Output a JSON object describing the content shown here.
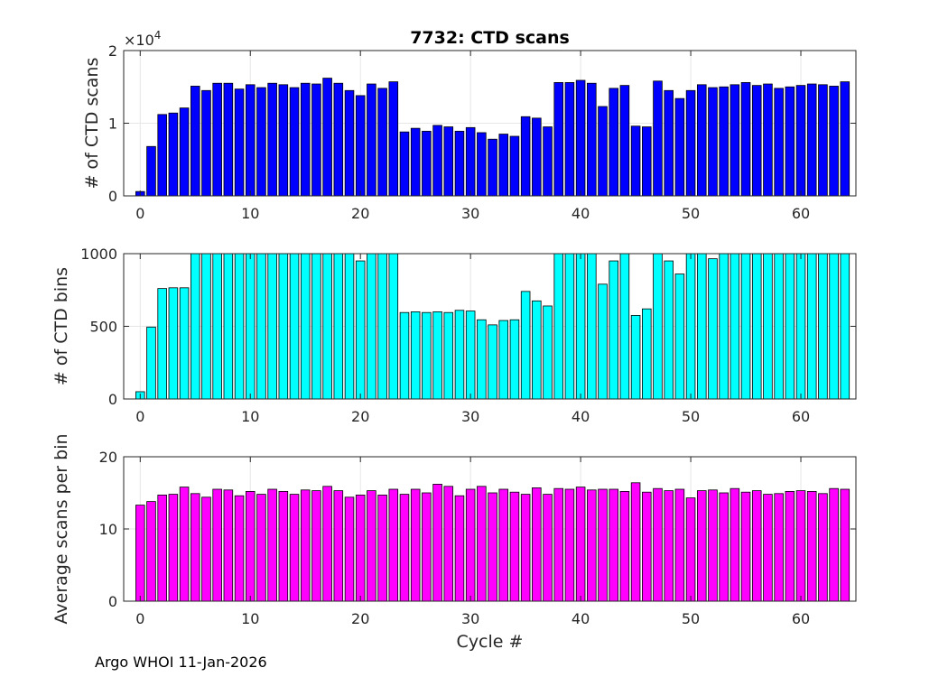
{
  "figure": {
    "footer": "Argo WHOI 11-Jan-2026"
  },
  "chart_data": [
    {
      "type": "bar",
      "title": "7732: CTD scans",
      "ylabel": "# of CTD scans",
      "xlabel": "",
      "exponent_label": "×10",
      "exponent_power": "4",
      "xlim": [
        -1.5,
        65
      ],
      "ylim": [
        0,
        20000
      ],
      "grid": true,
      "bar_color": "#0000ff",
      "xticks": [
        0,
        10,
        20,
        30,
        40,
        50,
        60
      ],
      "xtick_labels": [
        "0",
        "10",
        "20",
        "30",
        "40",
        "50",
        "60"
      ],
      "yticks": [
        0,
        10000,
        20000
      ],
      "ytick_labels": [
        "0",
        "1",
        "2"
      ],
      "x": [
        0,
        1,
        2,
        3,
        4,
        5,
        6,
        7,
        8,
        9,
        10,
        11,
        12,
        13,
        14,
        15,
        16,
        17,
        18,
        19,
        20,
        21,
        22,
        23,
        24,
        25,
        26,
        27,
        28,
        29,
        30,
        31,
        32,
        33,
        34,
        35,
        36,
        37,
        38,
        39,
        40,
        41,
        42,
        43,
        44,
        45,
        46,
        47,
        48,
        49,
        50,
        51,
        52,
        53,
        54,
        55,
        56,
        57,
        58,
        59,
        60,
        61,
        62,
        63,
        64
      ],
      "values": [
        600,
        6800,
        11200,
        11400,
        12100,
        15100,
        14500,
        15500,
        15500,
        14700,
        15300,
        14900,
        15500,
        15300,
        14900,
        15500,
        15400,
        16200,
        15500,
        14500,
        13800,
        15400,
        14800,
        15700,
        8800,
        9300,
        8900,
        9700,
        9500,
        8900,
        9400,
        8700,
        7800,
        8500,
        8200,
        10900,
        10700,
        9500,
        15600,
        15600,
        15900,
        15500,
        12300,
        14800,
        15200,
        9600,
        9500,
        15800,
        14500,
        13400,
        14500,
        15300,
        14900,
        15000,
        15300,
        15600,
        15200,
        15400,
        14800,
        15000,
        15200,
        15400,
        15300,
        15100,
        15700
      ]
    },
    {
      "type": "bar",
      "title": "",
      "ylabel": "# of CTD bins",
      "xlabel": "",
      "xlim": [
        -1.5,
        65
      ],
      "ylim": [
        0,
        1000
      ],
      "grid": true,
      "bar_color": "#00ffff",
      "xticks": [
        0,
        10,
        20,
        30,
        40,
        50,
        60
      ],
      "xtick_labels": [
        "0",
        "10",
        "20",
        "30",
        "40",
        "50",
        "60"
      ],
      "yticks": [
        0,
        500,
        1000
      ],
      "ytick_labels": [
        "0",
        "500",
        "1000"
      ],
      "x": [
        0,
        1,
        2,
        3,
        4,
        5,
        6,
        7,
        8,
        9,
        10,
        11,
        12,
        13,
        14,
        15,
        16,
        17,
        18,
        19,
        20,
        21,
        22,
        23,
        24,
        25,
        26,
        27,
        28,
        29,
        30,
        31,
        32,
        33,
        34,
        35,
        36,
        37,
        38,
        39,
        40,
        41,
        42,
        43,
        44,
        45,
        46,
        47,
        48,
        49,
        50,
        51,
        52,
        53,
        54,
        55,
        56,
        57,
        58,
        59,
        60,
        61,
        62,
        63,
        64
      ],
      "values": [
        50,
        495,
        760,
        765,
        765,
        1000,
        1000,
        1000,
        1000,
        1000,
        1000,
        1000,
        1000,
        1000,
        1000,
        1000,
        1000,
        1000,
        1000,
        1000,
        950,
        1000,
        1000,
        1000,
        595,
        600,
        595,
        600,
        595,
        610,
        605,
        545,
        510,
        540,
        545,
        740,
        675,
        640,
        1000,
        1000,
        1000,
        1000,
        790,
        950,
        1000,
        575,
        620,
        1000,
        950,
        860,
        1000,
        1000,
        965,
        1000,
        1000,
        1000,
        1000,
        1000,
        1000,
        1000,
        1000,
        1000,
        1000,
        1000,
        1000
      ]
    },
    {
      "type": "bar",
      "title": "",
      "ylabel": "Average scans per bin",
      "xlabel": "Cycle #",
      "xlim": [
        -1.5,
        65
      ],
      "ylim": [
        0,
        20
      ],
      "grid": true,
      "bar_color": "#ff00ff",
      "xticks": [
        0,
        10,
        20,
        30,
        40,
        50,
        60
      ],
      "xtick_labels": [
        "0",
        "10",
        "20",
        "30",
        "40",
        "50",
        "60"
      ],
      "yticks": [
        0,
        10,
        20
      ],
      "ytick_labels": [
        "0",
        "10",
        "20"
      ],
      "x": [
        0,
        1,
        2,
        3,
        4,
        5,
        6,
        7,
        8,
        9,
        10,
        11,
        12,
        13,
        14,
        15,
        16,
        17,
        18,
        19,
        20,
        21,
        22,
        23,
        24,
        25,
        26,
        27,
        28,
        29,
        30,
        31,
        32,
        33,
        34,
        35,
        36,
        37,
        38,
        39,
        40,
        41,
        42,
        43,
        44,
        45,
        46,
        47,
        48,
        49,
        50,
        51,
        52,
        53,
        54,
        55,
        56,
        57,
        58,
        59,
        60,
        61,
        62,
        63,
        64
      ],
      "values": [
        13.3,
        13.8,
        14.7,
        14.8,
        15.8,
        14.9,
        14.4,
        15.5,
        15.4,
        14.6,
        15.2,
        14.8,
        15.5,
        15.2,
        14.8,
        15.4,
        15.3,
        15.9,
        15.3,
        14.4,
        14.7,
        15.3,
        14.7,
        15.5,
        14.8,
        15.5,
        15.0,
        16.2,
        15.9,
        14.6,
        15.5,
        15.9,
        15.0,
        15.5,
        15.1,
        14.8,
        15.7,
        14.8,
        15.6,
        15.5,
        15.8,
        15.4,
        15.5,
        15.5,
        15.2,
        16.4,
        15.1,
        15.6,
        15.3,
        15.5,
        14.3,
        15.3,
        15.4,
        15.0,
        15.6,
        15.1,
        15.3,
        14.8,
        14.9,
        15.2,
        15.3,
        15.2,
        14.9,
        15.6,
        15.5
      ]
    }
  ]
}
